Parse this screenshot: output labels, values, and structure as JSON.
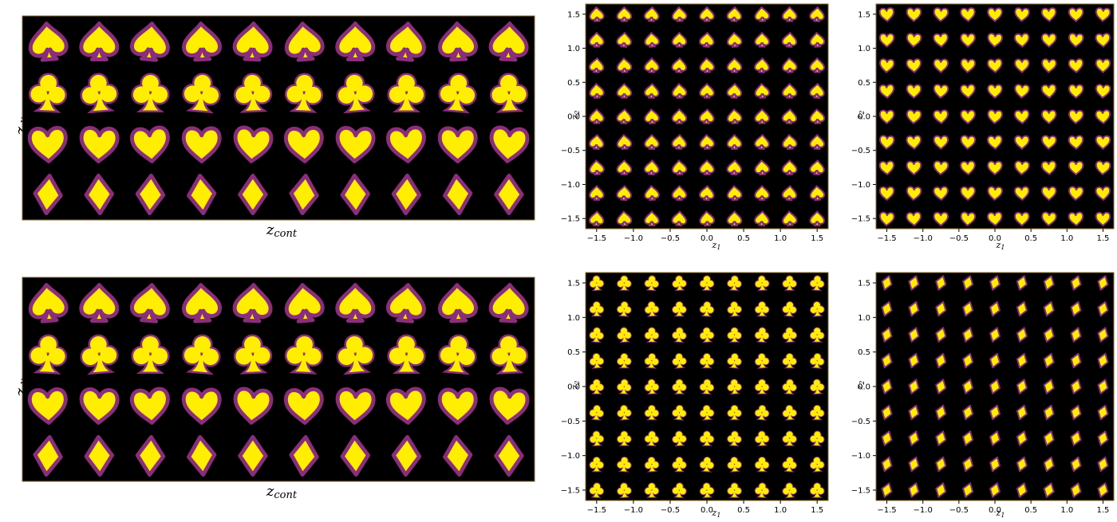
{
  "colors": {
    "background": "#000000",
    "glyph_fill": "#ffee00",
    "glyph_edge": "#8a2e7c",
    "frame": "#8a6a2a"
  },
  "chart_data": [
    {
      "type": "image_grid",
      "rows": [
        "spade",
        "club",
        "heart",
        "diamond"
      ],
      "columns": 10,
      "ylabel": {
        "base": "z",
        "sub": "disc"
      },
      "xlabel": {
        "base": "z",
        "sub": "cont"
      }
    },
    {
      "type": "image_grid",
      "shape": "spade",
      "grid": 9,
      "xlim": [
        -1.65,
        1.65
      ],
      "ylim": [
        -1.65,
        1.65
      ],
      "xticks": [
        "-1.5",
        "-1.0",
        "-0.5",
        "0.0",
        "0.5",
        "1.0",
        "1.5"
      ],
      "yticks": [
        "-1.5",
        "-1.0",
        "-0.5",
        "0.0",
        "0.5",
        "1.0",
        "1.5"
      ],
      "xlabel": {
        "base": "z",
        "sub": "1"
      },
      "ylabel": {
        "base": "z",
        "sub": "2"
      }
    },
    {
      "type": "image_grid",
      "shape": "heart",
      "grid": 9,
      "xlim": [
        -1.65,
        1.65
      ],
      "ylim": [
        -1.65,
        1.65
      ],
      "xticks": [
        "-1.5",
        "-1.0",
        "-0.5",
        "0.0",
        "0.5",
        "1.0",
        "1.5"
      ],
      "yticks": [
        "-1.5",
        "-1.0",
        "-0.5",
        "0.0",
        "0.5",
        "1.0",
        "1.5"
      ],
      "xlabel": {
        "base": "z",
        "sub": "1"
      },
      "ylabel": {
        "base": "z",
        "sub": "2"
      }
    },
    {
      "type": "image_grid",
      "rows": [
        "spade",
        "club",
        "heart",
        "diamond"
      ],
      "columns": 10,
      "ylabel": {
        "base": "z",
        "sub": "disc"
      },
      "xlabel": {
        "base": "z",
        "sub": "cont"
      }
    },
    {
      "type": "image_grid",
      "shape": "club",
      "grid": 9,
      "xlim": [
        -1.65,
        1.65
      ],
      "ylim": [
        -1.65,
        1.65
      ],
      "xticks": [
        "-1.5",
        "-1.0",
        "-0.5",
        "0.0",
        "0.5",
        "1.0",
        "1.5"
      ],
      "yticks": [
        "-1.5",
        "-1.0",
        "-0.5",
        "0.0",
        "0.5",
        "1.0",
        "1.5"
      ],
      "xlabel": {
        "base": "z",
        "sub": "1"
      },
      "ylabel": {
        "base": "z",
        "sub": "2"
      }
    },
    {
      "type": "image_grid",
      "shape": "diamond",
      "grid": 9,
      "xlim": [
        -1.65,
        1.65
      ],
      "ylim": [
        -1.65,
        1.65
      ],
      "xticks": [
        "-1.5",
        "-1.0",
        "-0.5",
        "0.0",
        "0.5",
        "1.0",
        "1.5"
      ],
      "yticks": [
        "-1.5",
        "-1.0",
        "-0.5",
        "0.0",
        "0.5",
        "1.0",
        "1.5"
      ],
      "xlabel": {
        "base": "z",
        "sub": "1"
      },
      "ylabel": {
        "base": "z",
        "sub": "2"
      }
    }
  ]
}
